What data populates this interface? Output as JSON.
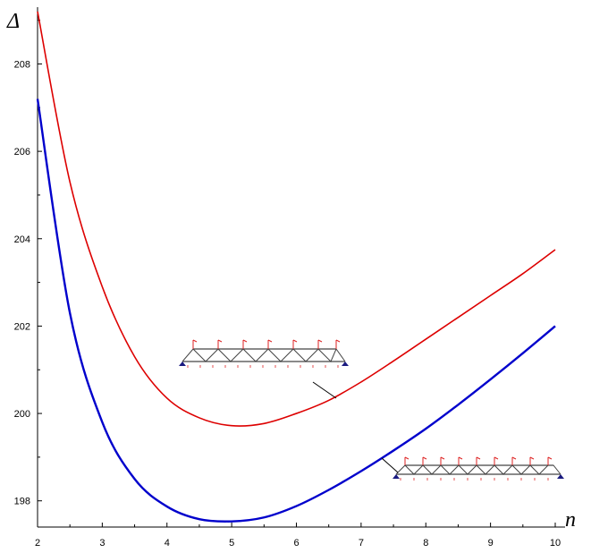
{
  "chart_data": {
    "type": "line",
    "title": "",
    "xlabel": "n",
    "ylabel": "Δ",
    "xlim": [
      2,
      10
    ],
    "ylim": [
      197.4,
      209.3
    ],
    "x_ticks": [
      2,
      3,
      4,
      5,
      6,
      7,
      8,
      9,
      10
    ],
    "y_ticks": [
      198,
      200,
      202,
      204,
      206,
      208
    ],
    "grid": false,
    "legend": "none",
    "series": [
      {
        "color": "#dd0000",
        "x": [
          2,
          2.5,
          3,
          3.5,
          4,
          4.5,
          5,
          5.5,
          6,
          6.5,
          7,
          7.5,
          8,
          8.5,
          9,
          9.5,
          10
        ],
        "y": [
          209.2,
          205.3,
          202.9,
          201.3,
          200.35,
          199.9,
          199.72,
          199.77,
          200.0,
          200.3,
          200.72,
          201.2,
          201.7,
          202.2,
          202.7,
          203.2,
          203.75
        ]
      },
      {
        "color": "#0000cc",
        "x": [
          2,
          2.5,
          3,
          3.5,
          4,
          4.5,
          5,
          5.5,
          6,
          6.5,
          7,
          7.5,
          8,
          8.5,
          9,
          9.5,
          10
        ],
        "y": [
          207.2,
          202.3,
          199.8,
          198.5,
          197.87,
          197.58,
          197.53,
          197.62,
          197.88,
          198.25,
          198.68,
          199.15,
          199.65,
          200.2,
          200.78,
          201.38,
          202.0
        ]
      }
    ]
  },
  "colors": {
    "axis": "#000000",
    "leader": "#000000",
    "truss_member": "#444444",
    "truss_load": "#dd2222",
    "truss_support": "#1a1a80"
  }
}
